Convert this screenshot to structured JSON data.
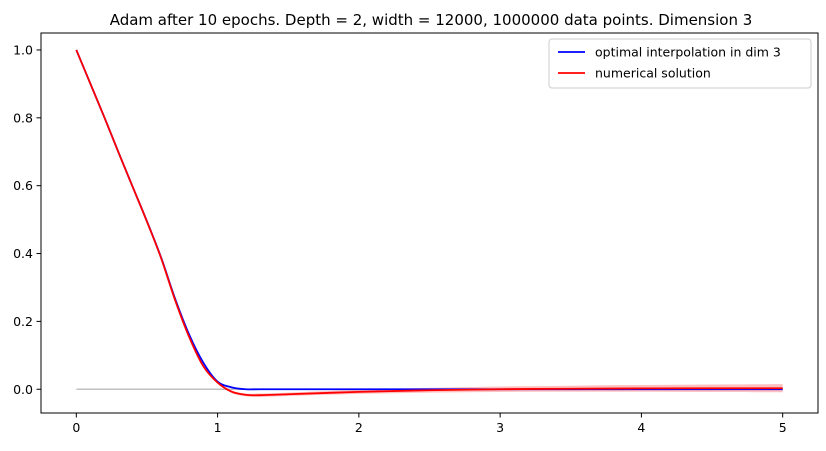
{
  "chart_data": {
    "type": "line",
    "title": "Adam after 10 epochs. Depth = 2, width = 12000, 1000000 data points. Dimension 3",
    "xlabel": "",
    "ylabel": "",
    "xlim": [
      -0.25,
      5.25
    ],
    "ylim": [
      -0.07,
      1.05
    ],
    "grid": false,
    "legend_position": "top-right",
    "x_ticks": [
      0,
      1,
      2,
      3,
      4,
      5
    ],
    "x_tick_labels": [
      "0",
      "1",
      "2",
      "3",
      "4",
      "5"
    ],
    "y_ticks": [
      0.0,
      0.2,
      0.4,
      0.6,
      0.8,
      1.0
    ],
    "y_tick_labels": [
      "0.0",
      "0.2",
      "0.4",
      "0.6",
      "0.8",
      "1.0"
    ],
    "baseline": {
      "y": 0,
      "x_range": [
        0,
        5
      ],
      "color": "#c0c0c0"
    },
    "series": [
      {
        "name": "optimal interpolation in dim 3",
        "color": "#0000ff",
        "x": [
          0,
          0.1,
          0.2,
          0.3,
          0.4,
          0.5,
          0.6,
          0.7,
          0.8,
          0.9,
          1.0,
          1.1,
          1.2,
          1.3,
          1.5,
          2.0,
          2.5,
          3.0,
          3.5,
          4.0,
          4.5,
          5.0
        ],
        "y": [
          1.0,
          0.9,
          0.8,
          0.6967,
          0.5956,
          0.4949,
          0.3884,
          0.2658,
          0.1598,
          0.0775,
          0.0225,
          0.0057,
          0.0,
          0.0,
          0.0,
          0.0,
          0.0,
          0.0,
          0.0,
          0.0,
          0.0,
          0.0
        ]
      },
      {
        "name": "numerical solution",
        "color": "#ff0000",
        "band_color": "#ff8c8c",
        "x": [
          0,
          0.1,
          0.2,
          0.3,
          0.4,
          0.5,
          0.6,
          0.7,
          0.8,
          0.9,
          1.0,
          1.1,
          1.2,
          1.3,
          1.5,
          2.0,
          2.5,
          3.0,
          3.5,
          4.0,
          4.5,
          5.0
        ],
        "y": [
          1.0,
          0.9,
          0.8,
          0.6966,
          0.5953,
          0.4941,
          0.3868,
          0.2618,
          0.1528,
          0.0672,
          0.0197,
          -0.0073,
          -0.0165,
          -0.0175,
          -0.0148,
          -0.0078,
          -0.003,
          0.0,
          0.0015,
          0.0025,
          0.003,
          0.003
        ],
        "band_halfwidth": [
          0.0,
          0.0,
          0.0,
          0.001,
          0.001,
          0.001,
          0.001,
          0.002,
          0.002,
          0.002,
          0.003,
          0.004,
          0.004,
          0.005,
          0.005,
          0.006,
          0.007,
          0.008,
          0.009,
          0.01,
          0.011,
          0.012
        ]
      }
    ]
  }
}
